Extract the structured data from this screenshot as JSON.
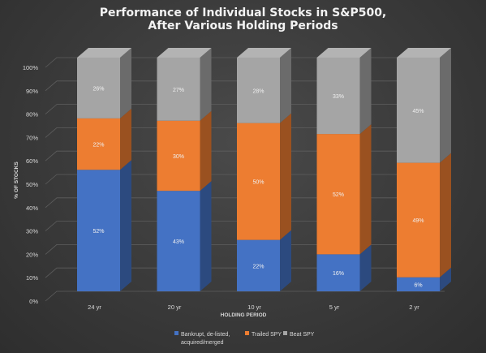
{
  "chart_data": {
    "type": "bar",
    "stacked": true,
    "three_d": true,
    "title": [
      "Performance of Individual Stocks in S&P500,",
      "After Various Holding Periods"
    ],
    "xlabel": "HOLDING PERIOD",
    "ylabel": "% OF STOCKS",
    "ylim": [
      0,
      100
    ],
    "yticks": [
      "0%",
      "10%",
      "20%",
      "30%",
      "40%",
      "50%",
      "60%",
      "70%",
      "80%",
      "90%",
      "100%"
    ],
    "categories": [
      "24 yr",
      "20 yr",
      "10 yr",
      "5 yr",
      "2 yr"
    ],
    "series": [
      {
        "name": "Bankrupt, de-listed, acquired/merged",
        "legend_lines": [
          "Bankrupt, de-listed,",
          "acquired/merged"
        ],
        "color": "#4472c4",
        "values": [
          52,
          43,
          22,
          16,
          6
        ],
        "labels": [
          "52%",
          "43%",
          "22%",
          "16%",
          "6%"
        ]
      },
      {
        "name": "Trailed SPY",
        "legend_lines": [
          "Trailed SPY"
        ],
        "color": "#ed7d31",
        "values": [
          22,
          30,
          50,
          52,
          49
        ],
        "labels": [
          "22%",
          "30%",
          "50%",
          "52%",
          "49%"
        ]
      },
      {
        "name": "Beat SPY",
        "legend_lines": [
          "Beat SPY"
        ],
        "color": "#a5a5a5",
        "values": [
          26,
          27,
          28,
          33,
          45
        ],
        "labels": [
          "26%",
          "27%",
          "28%",
          "33%",
          "45%"
        ]
      }
    ],
    "grid": true,
    "legend_position": "bottom"
  }
}
